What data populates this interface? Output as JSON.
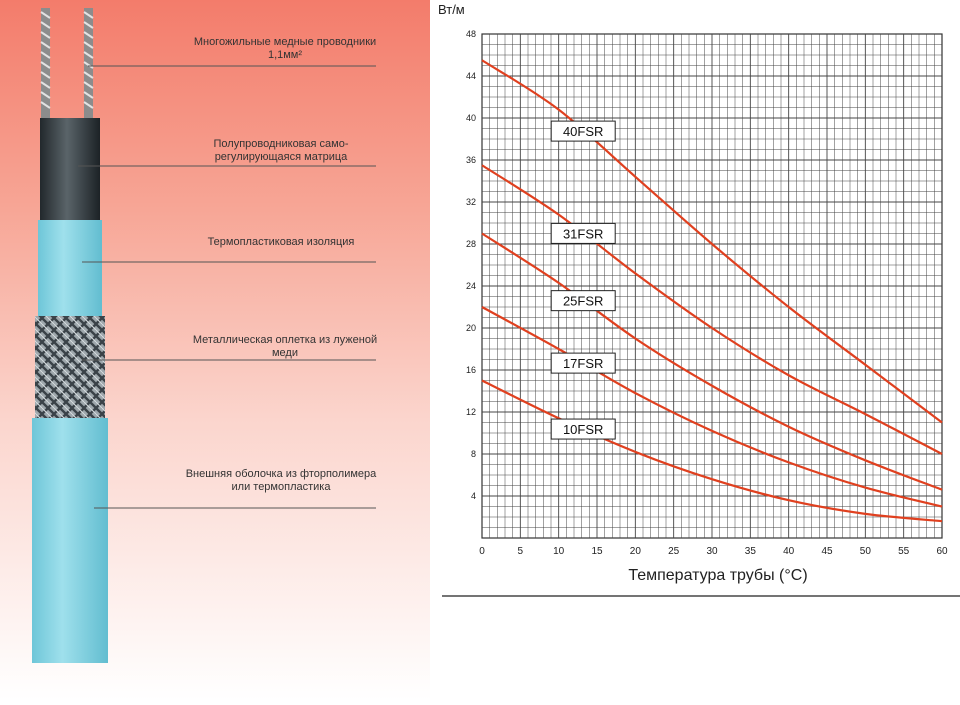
{
  "cable": {
    "layers": [
      {
        "text": "Многожильные медные проводники 1,1мм²"
      },
      {
        "text": "Полупроводниковая само-регулирующаяся матрица"
      },
      {
        "text": "Термопластиковая изоляция"
      },
      {
        "text": "Металлическая оплетка из луженой меди"
      },
      {
        "text": "Внешняя оболочка из фторполимера или термопластика"
      }
    ]
  },
  "colors": {
    "cable_jacket": "#7fd3e4",
    "matrix": "#333a40",
    "grid": "#444444",
    "series_line": "#e0401f"
  },
  "chart_data": {
    "type": "line",
    "ylabel": "Вт/м",
    "xlabel": "Температура трубы (°C)",
    "xlim": [
      0,
      60
    ],
    "ylim": [
      0,
      48
    ],
    "x_ticks": [
      0,
      5,
      10,
      15,
      20,
      25,
      30,
      35,
      40,
      45,
      50,
      55,
      60
    ],
    "y_ticks": [
      4,
      8,
      12,
      16,
      20,
      24,
      28,
      32,
      36,
      40,
      44,
      48
    ],
    "grid": true,
    "series": [
      {
        "name": "40FSR",
        "x": [
          0,
          10,
          20,
          30,
          40,
          50,
          60
        ],
        "y": [
          45.5,
          40.8,
          34.4,
          28.0,
          22.0,
          16.5,
          11.0
        ]
      },
      {
        "name": "31FSR",
        "x": [
          0,
          10,
          20,
          30,
          40,
          50,
          60
        ],
        "y": [
          35.5,
          30.8,
          25.2,
          20.0,
          15.5,
          11.8,
          8.0
        ]
      },
      {
        "name": "25FSR",
        "x": [
          0,
          10,
          20,
          30,
          40,
          50,
          60
        ],
        "y": [
          29.0,
          24.3,
          19.0,
          14.5,
          10.6,
          7.4,
          4.6
        ]
      },
      {
        "name": "17FSR",
        "x": [
          0,
          10,
          20,
          30,
          40,
          50,
          60
        ],
        "y": [
          22.0,
          18.0,
          13.8,
          10.2,
          7.2,
          4.8,
          3.0
        ]
      },
      {
        "name": "10FSR",
        "x": [
          0,
          10,
          20,
          30,
          40,
          50,
          60
        ],
        "y": [
          15.0,
          11.4,
          8.2,
          5.6,
          3.6,
          2.3,
          1.6
        ]
      }
    ]
  }
}
